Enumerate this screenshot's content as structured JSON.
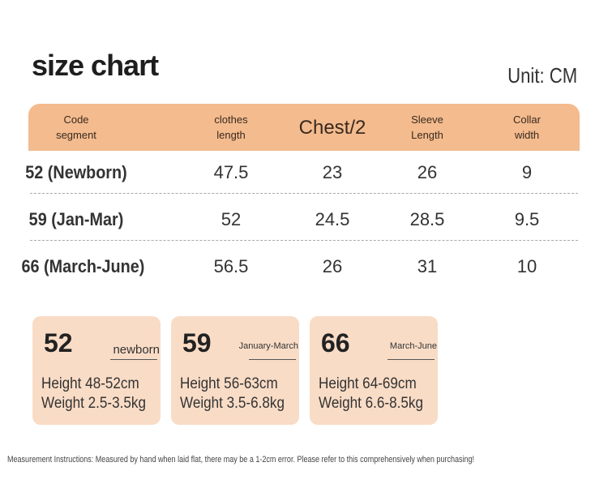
{
  "header": {
    "title": "size chart",
    "unit": "Unit: CM"
  },
  "table": {
    "columns": [
      [
        "Code",
        "segment"
      ],
      [
        "clothes",
        "length"
      ],
      [
        "Chest/2"
      ],
      [
        "Sleeve",
        "Length"
      ],
      [
        "Collar",
        "width"
      ]
    ],
    "rows": [
      [
        "52 (Newborn)",
        47.5,
        23,
        26,
        9
      ],
      [
        "59 (Jan-Mar)",
        52,
        24.5,
        28.5,
        9.5
      ],
      [
        "66 (March-June)",
        56.5,
        26,
        31,
        10
      ]
    ]
  },
  "cards": [
    {
      "size": "52",
      "label": "newborn",
      "height": "Height 48-52cm",
      "weight": "Weight 2.5-3.5kg"
    },
    {
      "size": "59",
      "label": "January-March",
      "height": "Height 56-63cm",
      "weight": "Weight 3.5-6.8kg"
    },
    {
      "size": "66",
      "label": "March-June",
      "height": "Height 64-69cm",
      "weight": "Weight 6.6-8.5kg"
    }
  ],
  "footnote": "Measurement Instructions: Measured by hand when laid flat, there may be a 1-2cm error. Please refer to this comprehensively when purchasing!"
}
